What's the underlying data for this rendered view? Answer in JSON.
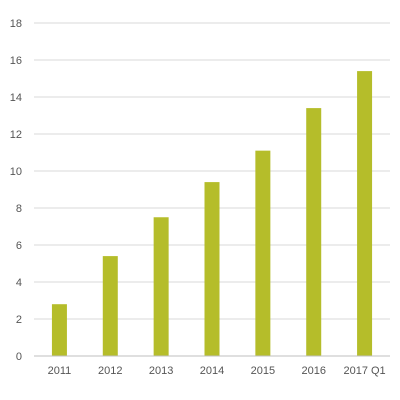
{
  "chart_data": {
    "type": "bar",
    "categories": [
      "2011",
      "2012",
      "2013",
      "2014",
      "2015",
      "2016",
      "2017 Q1"
    ],
    "values": [
      2.8,
      5.4,
      7.5,
      9.4,
      11.1,
      13.4,
      15.4
    ],
    "title": "",
    "xlabel": "",
    "ylabel": "",
    "ylim": [
      0,
      18
    ],
    "yticks": [
      0,
      2,
      4,
      6,
      8,
      10,
      12,
      14,
      16,
      18
    ],
    "grid": true,
    "legend": "none",
    "bar_color": "#b5bd2a"
  }
}
